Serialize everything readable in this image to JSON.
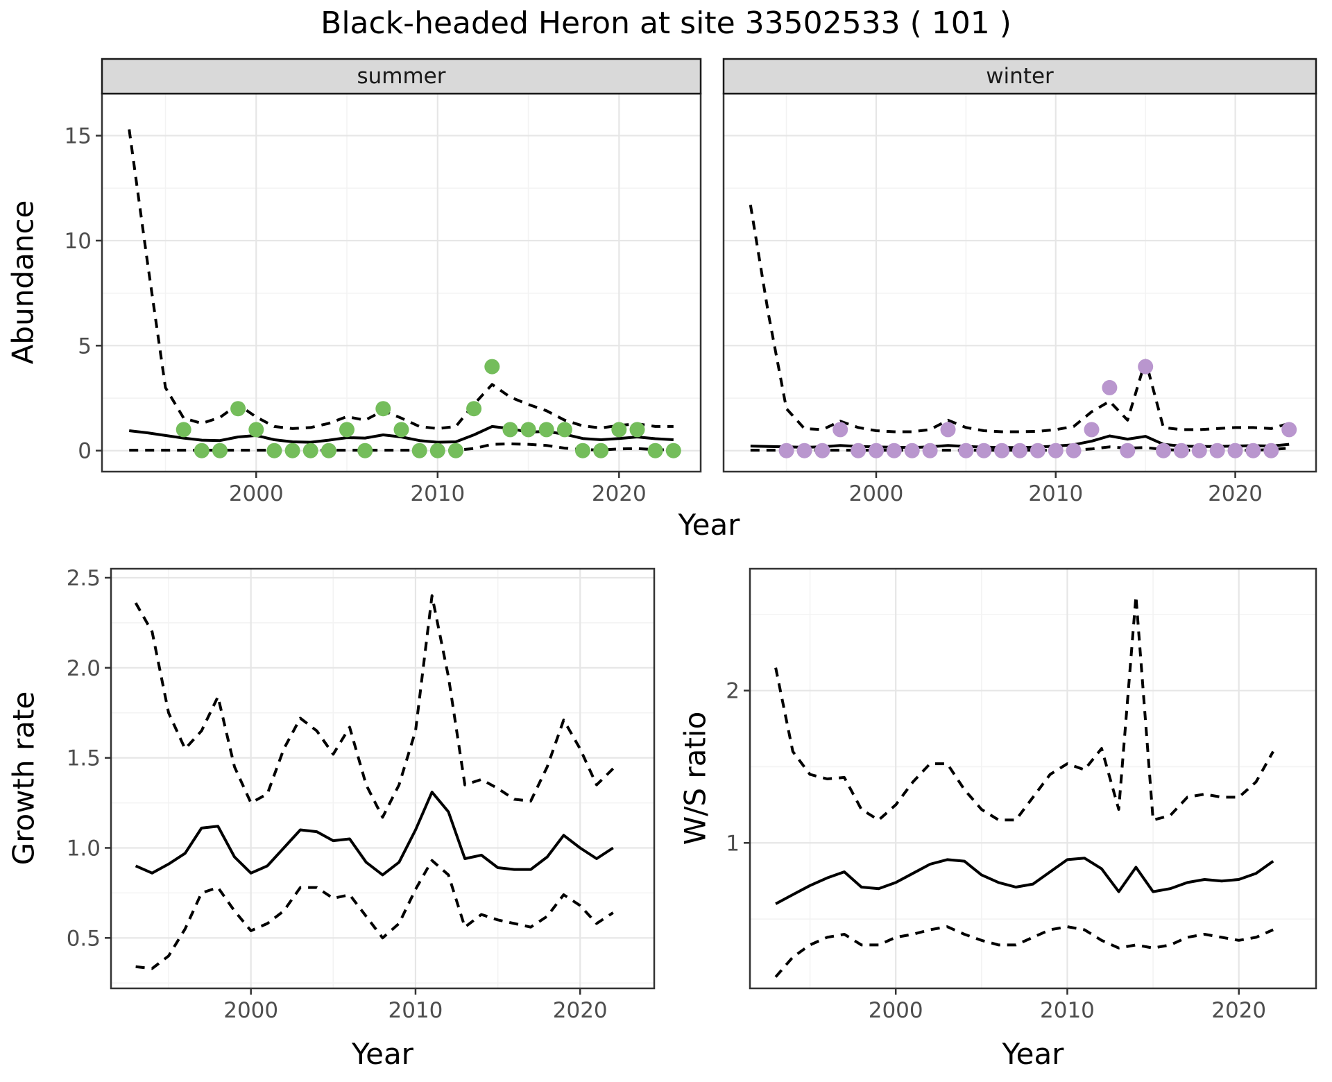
{
  "title": "Black-headed Heron at site 33502533 ( 101 )",
  "colors": {
    "summer_point": "#74bd5b",
    "winter_point": "#b996ce",
    "line": "#000000",
    "strip_bg": "#d9d9d9",
    "strip_border": "#1a1a1a",
    "panel_border": "#333333",
    "grid_major": "#e6e6e6",
    "grid_minor": "#f3f3f3",
    "tick_label": "#4d4d4d",
    "tick_mark": "#333333"
  },
  "chart_data": [
    {
      "id": "abundance-summer",
      "type": "line",
      "facet_label": "summer",
      "xlabel": "Year",
      "ylabel": "Abundance",
      "xlim": [
        1991.5,
        2024.5
      ],
      "ylim": [
        -1.0,
        17.0
      ],
      "x_ticks": [
        2000,
        2010,
        2020
      ],
      "x_minor": [
        1995,
        2005,
        2015
      ],
      "y_ticks": [
        0,
        5,
        10,
        15
      ],
      "y_tick_labels": [
        "0",
        "5",
        "10",
        "15"
      ],
      "y_minor": [
        2.5,
        7.5,
        12.5
      ],
      "x": [
        1993,
        1994,
        1995,
        1996,
        1997,
        1998,
        1999,
        2000,
        2001,
        2002,
        2003,
        2004,
        2005,
        2006,
        2007,
        2008,
        2009,
        2010,
        2011,
        2012,
        2013,
        2014,
        2015,
        2016,
        2017,
        2018,
        2019,
        2020,
        2021,
        2022,
        2023
      ],
      "series": [
        {
          "name": "fit",
          "style": "solid",
          "values": [
            0.95,
            0.85,
            0.72,
            0.6,
            0.5,
            0.48,
            0.65,
            0.72,
            0.52,
            0.42,
            0.4,
            0.5,
            0.62,
            0.6,
            0.75,
            0.65,
            0.48,
            0.4,
            0.42,
            0.75,
            1.15,
            1.05,
            0.88,
            0.92,
            0.78,
            0.58,
            0.52,
            0.58,
            0.65,
            0.57,
            0.52
          ]
        },
        {
          "name": "upper_ci",
          "style": "dashed",
          "values": [
            15.3,
            9.0,
            3.0,
            1.55,
            1.3,
            1.58,
            2.2,
            1.6,
            1.15,
            1.05,
            1.1,
            1.3,
            1.62,
            1.45,
            1.9,
            1.55,
            1.15,
            1.05,
            1.15,
            2.2,
            3.15,
            2.55,
            2.2,
            1.9,
            1.45,
            1.18,
            1.08,
            1.2,
            1.28,
            1.15,
            1.15
          ]
        },
        {
          "name": "lower_ci",
          "style": "dashed",
          "values": [
            0.02,
            0.02,
            0.02,
            0.02,
            0.02,
            0.02,
            0.02,
            0.02,
            0.02,
            0.02,
            0.02,
            0.02,
            0.02,
            0.02,
            0.02,
            0.02,
            0.02,
            0.02,
            0.02,
            0.1,
            0.3,
            0.32,
            0.3,
            0.25,
            0.12,
            0.05,
            0.03,
            0.08,
            0.1,
            0.05,
            0.03
          ]
        }
      ],
      "points": {
        "name": "observed-counts-summer",
        "color_key": "summer_point",
        "x": [
          1996,
          1997,
          1998,
          1999,
          2000,
          2001,
          2002,
          2003,
          2004,
          2005,
          2006,
          2007,
          2008,
          2009,
          2010,
          2011,
          2012,
          2013,
          2014,
          2015,
          2016,
          2017,
          2018,
          2019,
          2020,
          2021,
          2022,
          2023
        ],
        "y": [
          1,
          0,
          0,
          2,
          1,
          0,
          0,
          0,
          0,
          1,
          0,
          2,
          1,
          0,
          0,
          0,
          2,
          4,
          1,
          1,
          1,
          1,
          0,
          0,
          1,
          1,
          0,
          0
        ]
      }
    },
    {
      "id": "abundance-winter",
      "type": "line",
      "facet_label": "winter",
      "xlabel": "Year",
      "ylabel": "Abundance",
      "xlim": [
        1991.5,
        2024.5
      ],
      "ylim": [
        -1.0,
        17.0
      ],
      "x_ticks": [
        2000,
        2010,
        2020
      ],
      "x_minor": [
        1995,
        2005,
        2015
      ],
      "y_ticks": [
        0,
        5,
        10,
        15
      ],
      "y_tick_labels": null,
      "y_minor": [
        2.5,
        7.5,
        12.5
      ],
      "x": [
        1993,
        1994,
        1995,
        1996,
        1997,
        1998,
        1999,
        2000,
        2001,
        2002,
        2003,
        2004,
        2005,
        2006,
        2007,
        2008,
        2009,
        2010,
        2011,
        2012,
        2013,
        2014,
        2015,
        2016,
        2017,
        2018,
        2019,
        2020,
        2021,
        2022,
        2023
      ],
      "series": [
        {
          "name": "fit",
          "style": "solid",
          "values": [
            0.22,
            0.2,
            0.18,
            0.16,
            0.18,
            0.25,
            0.2,
            0.18,
            0.16,
            0.15,
            0.18,
            0.25,
            0.2,
            0.17,
            0.15,
            0.15,
            0.17,
            0.22,
            0.28,
            0.45,
            0.7,
            0.55,
            0.68,
            0.3,
            0.22,
            0.2,
            0.2,
            0.22,
            0.24,
            0.22,
            0.3
          ]
        },
        {
          "name": "upper_ci",
          "style": "dashed",
          "values": [
            11.7,
            6.5,
            2.0,
            1.05,
            1.0,
            1.4,
            1.1,
            0.95,
            0.9,
            0.9,
            1.0,
            1.45,
            1.1,
            0.95,
            0.9,
            0.9,
            0.92,
            1.0,
            1.15,
            1.85,
            2.35,
            1.45,
            4.3,
            1.1,
            1.0,
            1.0,
            1.05,
            1.1,
            1.1,
            1.05,
            1.3
          ]
        },
        {
          "name": "lower_ci",
          "style": "dashed",
          "values": [
            0.02,
            0.02,
            0.02,
            0.02,
            0.02,
            0.02,
            0.02,
            0.02,
            0.02,
            0.02,
            0.02,
            0.02,
            0.02,
            0.02,
            0.02,
            0.02,
            0.02,
            0.02,
            0.02,
            0.08,
            0.18,
            0.12,
            0.15,
            0.05,
            0.02,
            0.02,
            0.02,
            0.02,
            0.02,
            0.05,
            0.12
          ]
        }
      ],
      "points": {
        "name": "observed-counts-winter",
        "color_key": "winter_point",
        "x": [
          1995,
          1996,
          1997,
          1998,
          1999,
          2000,
          2001,
          2002,
          2003,
          2004,
          2005,
          2006,
          2007,
          2008,
          2009,
          2010,
          2011,
          2012,
          2013,
          2014,
          2015,
          2016,
          2017,
          2018,
          2019,
          2020,
          2021,
          2022,
          2023
        ],
        "y": [
          0,
          0,
          0,
          1,
          0,
          0,
          0,
          0,
          0,
          1,
          0,
          0,
          0,
          0,
          0,
          0,
          0,
          1,
          3,
          0,
          4,
          0,
          0,
          0,
          0,
          0,
          0,
          0,
          1
        ]
      }
    },
    {
      "id": "growth-rate",
      "type": "line",
      "facet_label": null,
      "xlabel": "Year",
      "ylabel": "Growth rate",
      "xlim": [
        1991.5,
        2024.5
      ],
      "ylim": [
        0.22,
        2.55
      ],
      "x_ticks": [
        2000,
        2010,
        2020
      ],
      "x_minor": [
        1995,
        2005,
        2015
      ],
      "y_ticks": [
        0.5,
        1.0,
        1.5,
        2.0,
        2.5
      ],
      "y_tick_labels": [
        "0.5",
        "1.0",
        "1.5",
        "2.0",
        "2.5"
      ],
      "y_minor": [
        0.25,
        0.75,
        1.25,
        1.75,
        2.25
      ],
      "x": [
        1993,
        1994,
        1995,
        1996,
        1997,
        1998,
        1999,
        2000,
        2001,
        2002,
        2003,
        2004,
        2005,
        2006,
        2007,
        2008,
        2009,
        2010,
        2011,
        2012,
        2013,
        2014,
        2015,
        2016,
        2017,
        2018,
        2019,
        2020,
        2021,
        2022
      ],
      "series": [
        {
          "name": "fit",
          "style": "solid",
          "values": [
            0.9,
            0.86,
            0.91,
            0.97,
            1.11,
            1.12,
            0.95,
            0.86,
            0.9,
            1.0,
            1.1,
            1.09,
            1.04,
            1.05,
            0.92,
            0.85,
            0.92,
            1.1,
            1.31,
            1.2,
            0.94,
            0.96,
            0.89,
            0.88,
            0.88,
            0.95,
            1.07,
            1.0,
            0.94,
            1.0
          ]
        },
        {
          "name": "upper_ci",
          "style": "dashed",
          "values": [
            2.36,
            2.2,
            1.75,
            1.55,
            1.65,
            1.84,
            1.45,
            1.25,
            1.3,
            1.55,
            1.72,
            1.65,
            1.52,
            1.67,
            1.35,
            1.17,
            1.35,
            1.65,
            2.4,
            1.95,
            1.35,
            1.38,
            1.33,
            1.27,
            1.26,
            1.45,
            1.71,
            1.55,
            1.35,
            1.44
          ]
        },
        {
          "name": "lower_ci",
          "style": "dashed",
          "values": [
            0.34,
            0.33,
            0.4,
            0.55,
            0.75,
            0.78,
            0.65,
            0.54,
            0.58,
            0.65,
            0.78,
            0.78,
            0.72,
            0.74,
            0.62,
            0.5,
            0.58,
            0.77,
            0.93,
            0.85,
            0.56,
            0.63,
            0.6,
            0.58,
            0.56,
            0.62,
            0.74,
            0.68,
            0.58,
            0.64
          ]
        }
      ],
      "points": null
    },
    {
      "id": "ws-ratio",
      "type": "line",
      "facet_label": null,
      "xlabel": "Year",
      "ylabel": "W/S ratio",
      "xlim": [
        1991.5,
        2024.5
      ],
      "ylim": [
        0.045,
        2.8
      ],
      "x_ticks": [
        2000,
        2010,
        2020
      ],
      "x_minor": [
        1995,
        2005,
        2015
      ],
      "y_ticks": [
        1,
        2
      ],
      "y_tick_labels": [
        "1",
        "2"
      ],
      "y_minor": [
        0.5,
        1.5,
        2.5
      ],
      "x": [
        1993,
        1994,
        1995,
        1996,
        1997,
        1998,
        1999,
        2000,
        2001,
        2002,
        2003,
        2004,
        2005,
        2006,
        2007,
        2008,
        2009,
        2010,
        2011,
        2012,
        2013,
        2014,
        2015,
        2016,
        2017,
        2018,
        2019,
        2020,
        2021,
        2022
      ],
      "series": [
        {
          "name": "fit",
          "style": "solid",
          "values": [
            0.6,
            0.66,
            0.72,
            0.77,
            0.81,
            0.71,
            0.7,
            0.74,
            0.8,
            0.86,
            0.89,
            0.88,
            0.79,
            0.74,
            0.71,
            0.73,
            0.81,
            0.89,
            0.9,
            0.83,
            0.68,
            0.84,
            0.68,
            0.7,
            0.74,
            0.76,
            0.75,
            0.76,
            0.8,
            0.88
          ]
        },
        {
          "name": "upper_ci",
          "style": "dashed",
          "values": [
            2.15,
            1.6,
            1.45,
            1.42,
            1.43,
            1.22,
            1.15,
            1.25,
            1.4,
            1.52,
            1.52,
            1.35,
            1.22,
            1.15,
            1.15,
            1.3,
            1.45,
            1.52,
            1.48,
            1.62,
            1.22,
            2.62,
            1.15,
            1.18,
            1.3,
            1.32,
            1.3,
            1.3,
            1.4,
            1.6
          ]
        },
        {
          "name": "lower_ci",
          "style": "dashed",
          "values": [
            0.12,
            0.25,
            0.33,
            0.38,
            0.4,
            0.33,
            0.33,
            0.38,
            0.4,
            0.43,
            0.45,
            0.4,
            0.36,
            0.33,
            0.33,
            0.38,
            0.43,
            0.45,
            0.43,
            0.36,
            0.31,
            0.33,
            0.31,
            0.33,
            0.38,
            0.4,
            0.38,
            0.36,
            0.38,
            0.43
          ]
        }
      ],
      "points": null
    }
  ]
}
